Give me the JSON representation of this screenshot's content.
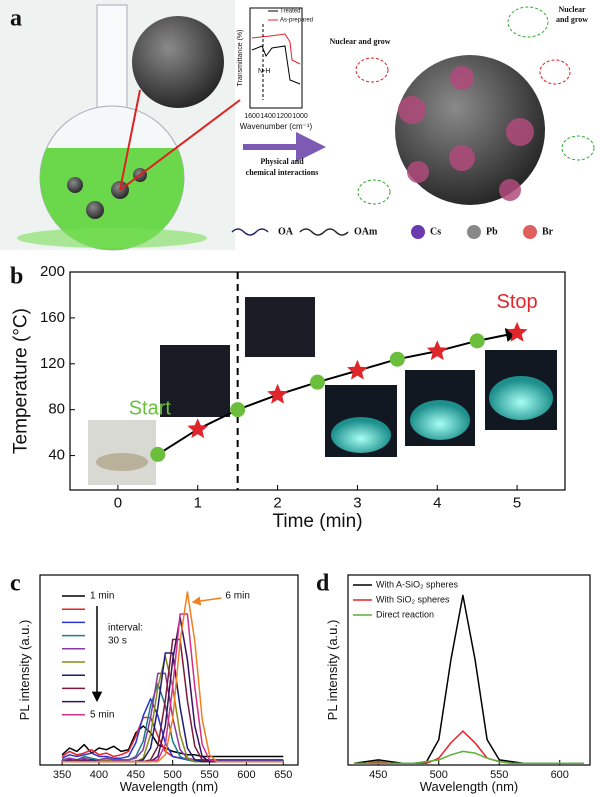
{
  "schematic": {
    "panel_label": "a",
    "inset": {
      "y_label": "Transmittance (%)",
      "x_label": "Wavenumber (cm⁻¹)",
      "xticks": [
        1600,
        1400,
        1200,
        1000
      ],
      "legend": [
        "Treated",
        "As-prepared"
      ],
      "annotation": "N-H"
    },
    "arrow_label": [
      "Physical and",
      "chemical interactions"
    ],
    "nuclear_labels": [
      "Nuclear and grow",
      "Nuclear",
      "and grow"
    ],
    "legend": [
      "OA",
      "OAm",
      "Cs",
      "Pb",
      "Br"
    ]
  },
  "chart_data": [
    {
      "type": "scatter",
      "panel_label": "b",
      "y_label": "Temperature (°C)",
      "x_label": "Time (min)",
      "xlim": [
        -0.6,
        5.6
      ],
      "ylim": [
        10,
        200
      ],
      "xticks": [
        0,
        1,
        2,
        3,
        4,
        5
      ],
      "yticks": [
        40,
        80,
        120,
        160,
        200
      ],
      "vline": 1.5,
      "annotations": [
        "Start",
        "Stop"
      ],
      "series": [
        {
          "marker": "circle",
          "color": "#6cbf3c",
          "x": [
            0.5,
            1.5,
            2.5,
            3.5,
            4.5
          ],
          "values": [
            41,
            80,
            104,
            124,
            140
          ]
        },
        {
          "marker": "star",
          "color": "#e0262a",
          "x": [
            1,
            2,
            3,
            4,
            5
          ],
          "values": [
            63,
            93,
            114,
            131,
            147
          ]
        }
      ]
    },
    {
      "type": "line",
      "panel_label": "c",
      "y_label": "PL intensity (a.u.)",
      "x_label": "Wavelength (nm)",
      "xlim": [
        320,
        670
      ],
      "ylim": [
        0,
        1.12
      ],
      "xticks": [
        350,
        400,
        450,
        500,
        550,
        600,
        650
      ],
      "annotation_lines": [
        "interval:",
        "30 s"
      ],
      "x": [
        350,
        360,
        370,
        380,
        390,
        400,
        410,
        420,
        430,
        440,
        450,
        460,
        470,
        480,
        490,
        500,
        510,
        520,
        530,
        540,
        550,
        560,
        570,
        580,
        590,
        600,
        610,
        620,
        630,
        640,
        650
      ],
      "series": [
        {
          "name": "1 min",
          "color": "#000000",
          "values": [
            0.06,
            0.1,
            0.08,
            0.12,
            0.07,
            0.1,
            0.09,
            0.11,
            0.08,
            0.09,
            0.19,
            0.23,
            0.19,
            0.12,
            0.1,
            0.08,
            0.07,
            0.06,
            0.06,
            0.05,
            0.05,
            0.05,
            0.05,
            0.05,
            0.05,
            0.05,
            0.05,
            0.05,
            0.05,
            0.05,
            0.05
          ]
        },
        {
          "color": "#e8202a",
          "values": [
            0.05,
            0.08,
            0.06,
            0.07,
            0.09,
            0.06,
            0.07,
            0.05,
            0.06,
            0.08,
            0.17,
            0.28,
            0.28,
            0.17,
            0.08,
            0.05,
            0.04,
            0.04,
            0.03,
            0.03,
            0.03,
            0.03,
            0.03,
            0.03,
            0.03,
            0.03,
            0.03,
            0.03,
            0.03,
            0.03,
            0.03
          ]
        },
        {
          "color": "#2a35d0",
          "values": [
            0.04,
            0.06,
            0.05,
            0.06,
            0.07,
            0.05,
            0.05,
            0.04,
            0.04,
            0.05,
            0.13,
            0.29,
            0.39,
            0.29,
            0.13,
            0.05,
            0.04,
            0.03,
            0.03,
            0.03,
            0.03,
            0.03,
            0.03,
            0.03,
            0.03,
            0.03,
            0.03,
            0.03,
            0.03,
            0.03,
            0.03
          ]
        },
        {
          "color": "#1b7c8c",
          "values": [
            0.03,
            0.04,
            0.03,
            0.05,
            0.04,
            0.03,
            0.04,
            0.03,
            0.03,
            0.03,
            0.05,
            0.14,
            0.35,
            0.48,
            0.35,
            0.14,
            0.05,
            0.03,
            0.02,
            0.02,
            0.02,
            0.02,
            0.02,
            0.02,
            0.02,
            0.02,
            0.02,
            0.02,
            0.02,
            0.02,
            0.02
          ]
        },
        {
          "color": "#8a3aa0",
          "values": [
            0.03,
            0.04,
            0.03,
            0.04,
            0.03,
            0.03,
            0.04,
            0.03,
            0.03,
            0.03,
            0.04,
            0.09,
            0.28,
            0.54,
            0.54,
            0.28,
            0.09,
            0.04,
            0.03,
            0.02,
            0.02,
            0.02,
            0.02,
            0.02,
            0.02,
            0.02,
            0.02,
            0.02,
            0.02,
            0.02,
            0.02
          ]
        },
        {
          "color": "#8a8a18",
          "values": [
            0.02,
            0.03,
            0.02,
            0.03,
            0.02,
            0.02,
            0.03,
            0.02,
            0.02,
            0.02,
            0.02,
            0.04,
            0.18,
            0.46,
            0.64,
            0.46,
            0.18,
            0.04,
            0.02,
            0.02,
            0.02,
            0.02,
            0.02,
            0.02,
            0.02,
            0.02,
            0.02,
            0.02,
            0.02,
            0.02,
            0.02
          ]
        },
        {
          "color": "#1c1c7a",
          "values": [
            0.02,
            0.03,
            0.02,
            0.02,
            0.03,
            0.02,
            0.02,
            0.02,
            0.02,
            0.02,
            0.02,
            0.03,
            0.1,
            0.34,
            0.66,
            0.66,
            0.34,
            0.1,
            0.03,
            0.02,
            0.02,
            0.02,
            0.02,
            0.02,
            0.02,
            0.02,
            0.02,
            0.02,
            0.02,
            0.02,
            0.02
          ]
        },
        {
          "color": "#7a1a3a",
          "values": [
            0.02,
            0.02,
            0.03,
            0.02,
            0.02,
            0.02,
            0.02,
            0.02,
            0.02,
            0.02,
            0.02,
            0.02,
            0.03,
            0.11,
            0.38,
            0.74,
            0.74,
            0.38,
            0.11,
            0.03,
            0.02,
            0.02,
            0.02,
            0.02,
            0.02,
            0.02,
            0.02,
            0.02,
            0.02,
            0.02,
            0.02
          ]
        },
        {
          "color": "#3a1060",
          "values": [
            0.02,
            0.02,
            0.02,
            0.03,
            0.02,
            0.02,
            0.02,
            0.02,
            0.02,
            0.02,
            0.02,
            0.02,
            0.02,
            0.05,
            0.23,
            0.62,
            0.87,
            0.62,
            0.23,
            0.05,
            0.02,
            0.02,
            0.02,
            0.02,
            0.02,
            0.02,
            0.02,
            0.02,
            0.02,
            0.02,
            0.02
          ]
        },
        {
          "name": "5 min",
          "color": "#d0308a",
          "values": [
            0.02,
            0.02,
            0.02,
            0.02,
            0.02,
            0.02,
            0.02,
            0.02,
            0.02,
            0.02,
            0.02,
            0.02,
            0.02,
            0.03,
            0.12,
            0.46,
            0.89,
            0.89,
            0.46,
            0.12,
            0.03,
            0.02,
            0.02,
            0.02,
            0.02,
            0.02,
            0.02,
            0.02,
            0.02,
            0.02,
            0.02
          ]
        },
        {
          "name": "6 min",
          "color": "#f08020",
          "values": [
            0.02,
            0.02,
            0.02,
            0.02,
            0.02,
            0.02,
            0.02,
            0.02,
            0.02,
            0.02,
            0.02,
            0.02,
            0.02,
            0.02,
            0.06,
            0.27,
            0.73,
            1.02,
            0.73,
            0.27,
            0.06,
            0.02,
            0.02,
            0.02,
            0.02,
            0.02,
            0.02,
            0.02,
            0.02,
            0.02,
            0.02
          ]
        }
      ]
    },
    {
      "type": "line",
      "panel_label": "d",
      "y_label": "PL intensity (a.u.)",
      "x_label": "Wavelength (nm)",
      "xlim": [
        425,
        625
      ],
      "ylim": [
        0,
        1.12
      ],
      "xticks": [
        450,
        500,
        550,
        600
      ],
      "x": [
        430,
        440,
        450,
        460,
        470,
        480,
        490,
        500,
        510,
        520,
        530,
        540,
        550,
        560,
        570,
        580,
        590,
        600,
        610,
        620
      ],
      "series": [
        {
          "name": "With A-SiO₂ spheres",
          "color": "#000000",
          "values": [
            0.01,
            0.02,
            0.03,
            0.02,
            0.01,
            0.01,
            0.02,
            0.15,
            0.62,
            1.0,
            0.62,
            0.15,
            0.03,
            0.02,
            0.01,
            0.01,
            0.01,
            0.01,
            0.01,
            0.01
          ]
        },
        {
          "name": "With SiO₂ spheres",
          "color": "#e8202a",
          "values": [
            0.01,
            0.01,
            0.02,
            0.01,
            0.01,
            0.01,
            0.01,
            0.04,
            0.13,
            0.2,
            0.13,
            0.04,
            0.02,
            0.01,
            0.01,
            0.01,
            0.01,
            0.01,
            0.01,
            0.01
          ]
        },
        {
          "name": "Direct reaction",
          "color": "#5cb03c",
          "values": [
            0.01,
            0.01,
            0.01,
            0.01,
            0.01,
            0.01,
            0.02,
            0.03,
            0.06,
            0.08,
            0.07,
            0.04,
            0.02,
            0.01,
            0.01,
            0.01,
            0.01,
            0.01,
            0.01,
            0.01
          ]
        }
      ]
    }
  ]
}
